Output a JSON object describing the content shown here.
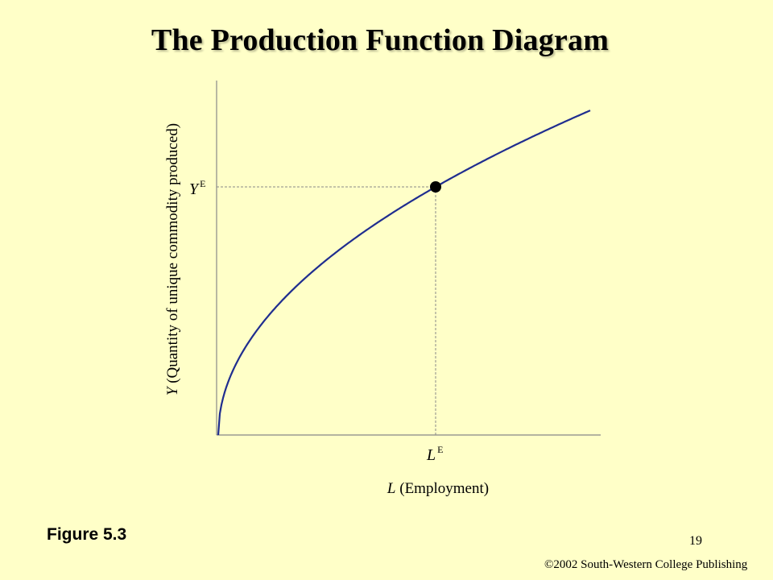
{
  "slide": {
    "title": "The Production Function Diagram",
    "figure_label": "Figure 5.3",
    "page_number": "19",
    "copyright": "©2002 South-Western College Publishing"
  },
  "diagram": {
    "y_axis_label_var": "Y",
    "y_axis_label_text": " (Quantity of unique commodity produced)",
    "x_axis_label_var": "L",
    "x_axis_label_text": " (Employment)",
    "y_point_label": "Y",
    "y_point_label_sup": "E",
    "x_point_label": "L",
    "x_point_label_sup": "E",
    "curve_color": "#1f2d8f"
  }
}
